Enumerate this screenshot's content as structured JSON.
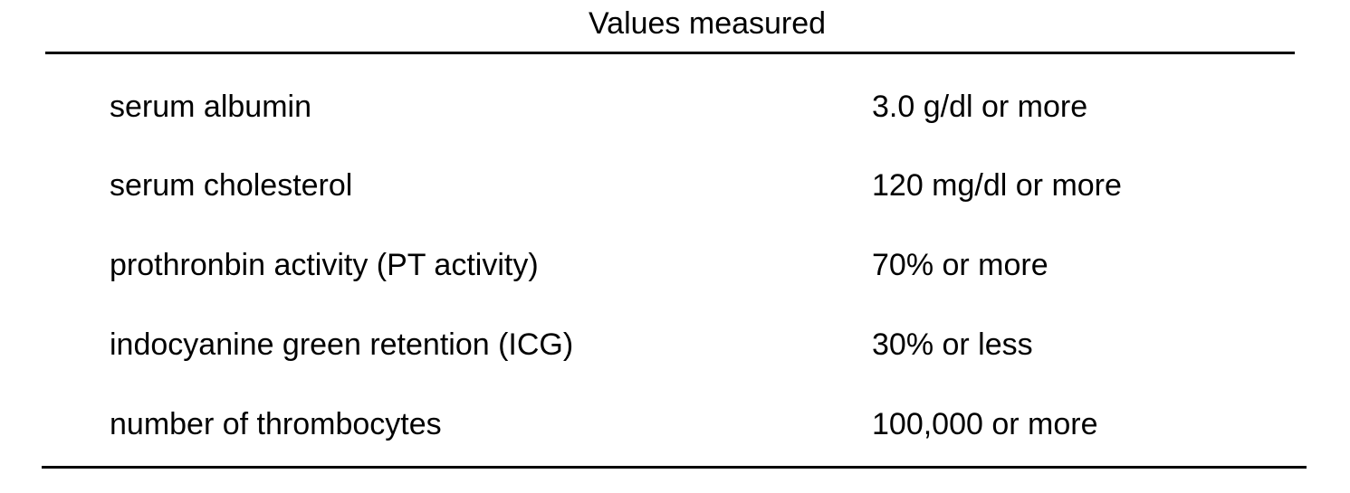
{
  "table": {
    "header": "Values measured",
    "rows": [
      {
        "label": "serum albumin",
        "value": "3.0 g/dl or more"
      },
      {
        "label": "serum cholesterol",
        "value": "120 mg/dl or more"
      },
      {
        "label": "prothronbin activity (PT activity)",
        "value": "70% or more"
      },
      {
        "label": "indocyanine green retention (ICG)",
        "value": "30% or less"
      },
      {
        "label": "number of thrombocytes",
        "value": "100,000 or more"
      }
    ]
  },
  "colors": {
    "text": "#000000",
    "background": "#ffffff",
    "rule": "#000000"
  }
}
